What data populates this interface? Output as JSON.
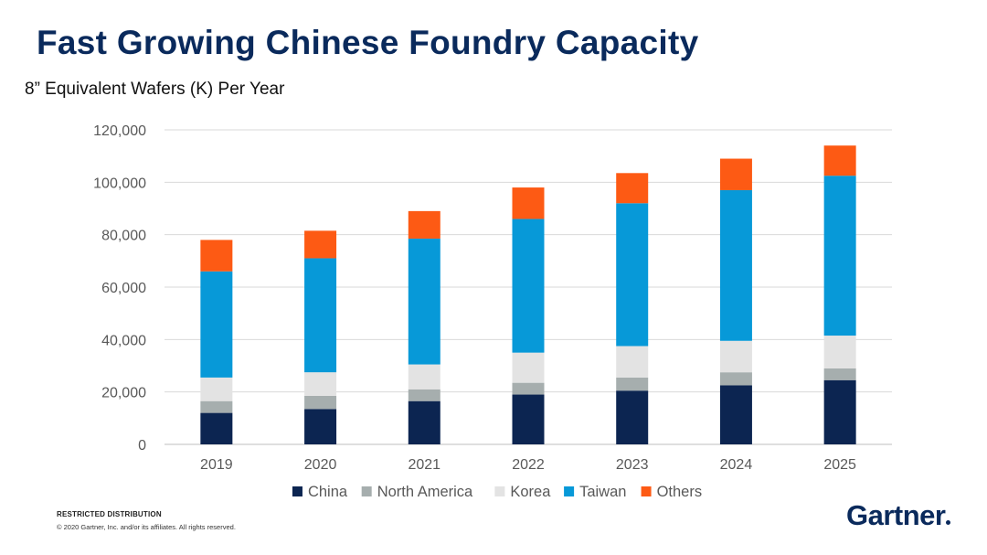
{
  "title": "Fast Growing Chinese Foundry Capacity",
  "subtitle": "8” Equivalent Wafers (K) Per Year",
  "footer": {
    "restricted": "RESTRICTED DISTRIBUTION",
    "copyright": "© 2020 Gartner, Inc. and/or its affiliates. All rights reserved."
  },
  "logo": "Gartner",
  "chart_data": {
    "type": "bar",
    "stacked": true,
    "title": "",
    "xlabel": "",
    "ylabel": "",
    "categories": [
      "2019",
      "2020",
      "2021",
      "2022",
      "2023",
      "2024",
      "2025"
    ],
    "ylim": [
      0,
      120000
    ],
    "yticks": [
      0,
      20000,
      40000,
      60000,
      80000,
      100000,
      120000
    ],
    "ytick_labels": [
      "0",
      "20,000",
      "40,000",
      "60,000",
      "80,000",
      "100,000",
      "120,000"
    ],
    "grid": true,
    "legend_position": "bottom",
    "series": [
      {
        "name": "China",
        "color": "#0c2551",
        "values": [
          12000,
          13500,
          16500,
          19000,
          20500,
          22500,
          24500
        ]
      },
      {
        "name": "North America",
        "color": "#a6aeae",
        "values": [
          4500,
          5000,
          4500,
          4500,
          5000,
          5000,
          4500
        ]
      },
      {
        "name": "Korea",
        "color": "#e3e3e3",
        "values": [
          9000,
          9000,
          9500,
          11500,
          12000,
          12000,
          12500
        ]
      },
      {
        "name": "Taiwan",
        "color": "#0799d8",
        "values": [
          40500,
          43500,
          48000,
          51000,
          54500,
          57500,
          61000
        ]
      },
      {
        "name": "Others",
        "color": "#fd5a14",
        "values": [
          12000,
          10500,
          10500,
          12000,
          11500,
          12000,
          11500
        ]
      }
    ]
  }
}
